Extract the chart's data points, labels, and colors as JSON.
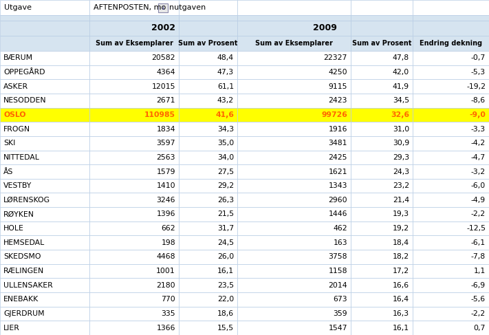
{
  "col_headers": [
    "Sum av Eksemplarer",
    "Sum av Prosent",
    "Sum av Eksemplarer",
    "Sum av Prosent",
    "Endring dekning"
  ],
  "rows": [
    [
      "BÆRUM",
      20582,
      "48,4",
      22327,
      "47,8",
      "-0,7"
    ],
    [
      "OPPEGÅRD",
      4364,
      "47,3",
      4250,
      "42,0",
      "-5,3"
    ],
    [
      "ASKER",
      12015,
      "61,1",
      9115,
      "41,9",
      "-19,2"
    ],
    [
      "NESODDEN",
      2671,
      "43,2",
      2423,
      "34,5",
      "-8,6"
    ],
    [
      "OSLO",
      110985,
      "41,6",
      99726,
      "32,6",
      "-9,0"
    ],
    [
      "FROGN",
      1834,
      "34,3",
      1916,
      "31,0",
      "-3,3"
    ],
    [
      "SKI",
      3597,
      "35,0",
      3481,
      "30,9",
      "-4,2"
    ],
    [
      "NITTEDAL",
      2563,
      "34,0",
      2425,
      "29,3",
      "-4,7"
    ],
    [
      "ÅS",
      1579,
      "27,5",
      1621,
      "24,3",
      "-3,2"
    ],
    [
      "VESTBY",
      1410,
      "29,2",
      1343,
      "23,2",
      "-6,0"
    ],
    [
      "LØRENSKOG",
      3246,
      "26,3",
      2960,
      "21,4",
      "-4,9"
    ],
    [
      "RØYKEN",
      1396,
      "21,5",
      1446,
      "19,3",
      "-2,2"
    ],
    [
      "HOLE",
      662,
      "31,7",
      462,
      "19,2",
      "-12,5"
    ],
    [
      "HEMSEDAL",
      198,
      "24,5",
      163,
      "18,4",
      "-6,1"
    ],
    [
      "SKEDSMO",
      4468,
      "26,0",
      3758,
      "18,2",
      "-7,8"
    ],
    [
      "RÆLINGEN",
      1001,
      "16,1",
      1158,
      "17,2",
      "1,1"
    ],
    [
      "ULLENSAKER",
      2180,
      "23,5",
      2014,
      "16,6",
      "-6,9"
    ],
    [
      "ENEBAKK",
      770,
      "22,0",
      673,
      "16,4",
      "-5,6"
    ],
    [
      "GJERDRUM",
      335,
      "18,6",
      359,
      "16,3",
      "-2,2"
    ],
    [
      "LIER",
      1366,
      "15,5",
      1547,
      "16,1",
      "0,7"
    ]
  ],
  "highlight_row": 4,
  "highlight_color": "#FFFF00",
  "header_bg": "#D6E4F0",
  "grid_color": "#B8CCE4",
  "text_color_normal": "#000000",
  "text_color_highlight": "#FF6600",
  "utgave_label": "Utgave",
  "utgave_value_pre": "AFTENPOSTEN, mo",
  "utgave_value_post": "nutgaven",
  "year1": "2002",
  "year2": "2009"
}
